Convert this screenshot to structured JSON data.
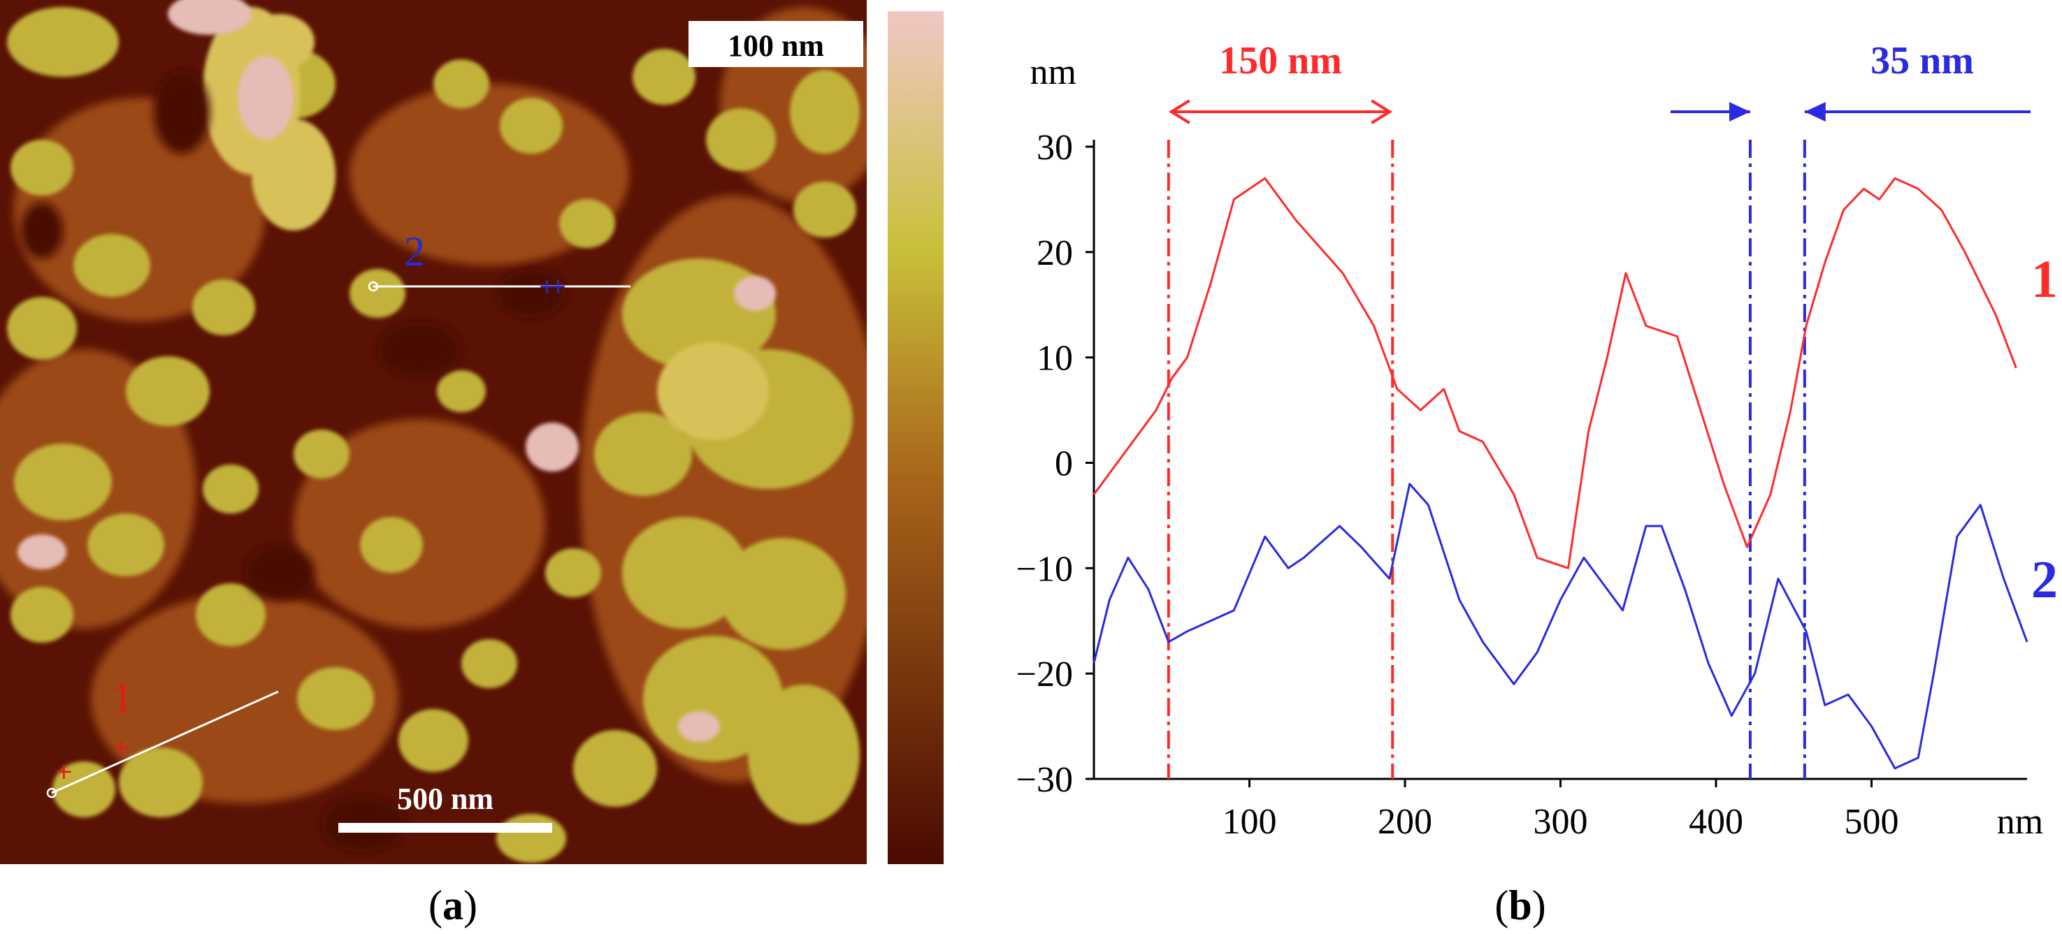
{
  "panel_a": {
    "caption_letter": "a",
    "colorbar_max_label": "100 nm",
    "scale_bar_label": "500 nm",
    "line_1_label": "1",
    "line_2_label": "2",
    "colors": {
      "low": "#4a0a02",
      "mid": "#a8641a",
      "high": "#c9c03a",
      "top": "#f0c7c4",
      "line_1_marker": "#e11a1a",
      "line_2_marker": "#2a2ad0",
      "profile_line": "#ffffff"
    }
  },
  "panel_b": {
    "caption_letter": "b",
    "annotations": {
      "width_1": "150 nm",
      "width_2": "35 nm"
    },
    "curve_labels": {
      "curve_1": "1",
      "curve_2": "2"
    }
  },
  "chart_data": {
    "type": "line",
    "title": "",
    "xlabel": "nm",
    "ylabel": "nm",
    "xlim": [
      0,
      600
    ],
    "ylim": [
      -30,
      30
    ],
    "xticks": [
      100,
      200,
      300,
      400,
      500
    ],
    "yticks": [
      30,
      20,
      10,
      0,
      -10,
      -20,
      -30
    ],
    "x_tick_labels": [
      "100",
      "200",
      "300",
      "400",
      "500"
    ],
    "y_tick_labels": [
      "30",
      "20",
      "10",
      "0",
      "−10",
      "−20",
      "−30"
    ],
    "grid": false,
    "series": [
      {
        "name": "1",
        "color": "#ff2a2a",
        "x": [
          0,
          20,
          40,
          50,
          60,
          75,
          90,
          110,
          130,
          160,
          180,
          195,
          210,
          225,
          235,
          250,
          270,
          285,
          305,
          318,
          330,
          342,
          355,
          375,
          390,
          405,
          420,
          435,
          448,
          458,
          470,
          482,
          495,
          505,
          515,
          530,
          545,
          560,
          580,
          593
        ],
        "y": [
          -3,
          1,
          5,
          8,
          10,
          17,
          25,
          27,
          23,
          18,
          13,
          7,
          5,
          7,
          3,
          2,
          -3,
          -9,
          -10,
          3,
          10,
          18,
          13,
          12,
          5,
          -2,
          -8,
          -3,
          5,
          13,
          19,
          24,
          26,
          25,
          27,
          26,
          24,
          20,
          14,
          9
        ]
      },
      {
        "name": "2",
        "color": "#2a2ae0",
        "x": [
          0,
          10,
          22,
          35,
          48,
          60,
          75,
          90,
          110,
          125,
          135,
          158,
          172,
          190,
          203,
          215,
          235,
          250,
          270,
          285,
          300,
          315,
          330,
          340,
          355,
          365,
          380,
          395,
          410,
          425,
          440,
          458,
          470,
          485,
          500,
          515,
          530,
          540,
          555,
          570,
          585,
          600
        ],
        "y": [
          -19,
          -13,
          -9,
          -12,
          -17,
          -16,
          -15,
          -14,
          -7,
          -10,
          -9,
          -6,
          -8,
          -11,
          -2,
          -4,
          -13,
          -17,
          -21,
          -18,
          -13,
          -9,
          -12,
          -14,
          -6,
          -6,
          -12,
          -19,
          -24,
          -20,
          -11,
          -16,
          -23,
          -22,
          -25,
          -29,
          -28,
          -20,
          -7,
          -4,
          -11,
          -17
        ]
      }
    ]
  }
}
